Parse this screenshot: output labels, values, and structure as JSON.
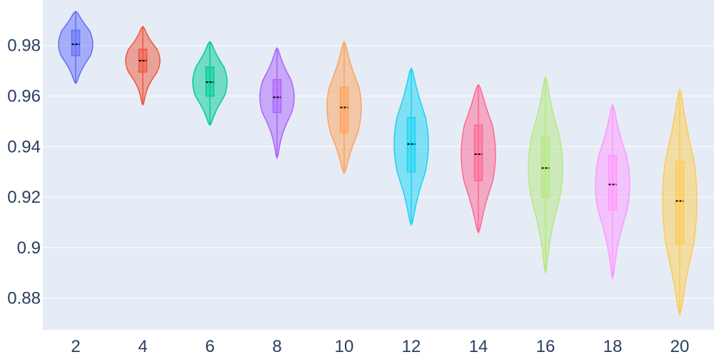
{
  "chart_data": {
    "type": "violin",
    "title": "",
    "xlabel": "",
    "ylabel": "",
    "ylim": [
      0.8675,
      0.998
    ],
    "yticks": [
      0.88,
      0.9,
      0.92,
      0.94,
      0.96,
      0.98
    ],
    "ytick_labels": [
      "0.88",
      "0.9",
      "0.92",
      "0.94",
      "0.96",
      "0.98"
    ],
    "categories": [
      "2",
      "4",
      "6",
      "8",
      "10",
      "12",
      "14",
      "16",
      "18",
      "20"
    ],
    "grid": true,
    "legend": "none",
    "background": "#e5ecf6",
    "series": [
      {
        "color": "#636efa",
        "min": 0.965,
        "q1": 0.976,
        "median": 0.9805,
        "q3": 0.986,
        "max": 0.9935,
        "mean": 0.9805
      },
      {
        "color": "#ef553b",
        "min": 0.9565,
        "q1": 0.9695,
        "median": 0.974,
        "q3": 0.9785,
        "max": 0.9875,
        "mean": 0.974
      },
      {
        "color": "#00cc96",
        "min": 0.9485,
        "q1": 0.96,
        "median": 0.9655,
        "q3": 0.9715,
        "max": 0.9815,
        "mean": 0.9655
      },
      {
        "color": "#ab63fa",
        "min": 0.9355,
        "q1": 0.9535,
        "median": 0.9595,
        "q3": 0.9665,
        "max": 0.979,
        "mean": 0.9595
      },
      {
        "color": "#ffa15a",
        "min": 0.9295,
        "q1": 0.9455,
        "median": 0.9555,
        "q3": 0.9635,
        "max": 0.9815,
        "mean": 0.9555
      },
      {
        "color": "#19d3f3",
        "min": 0.909,
        "q1": 0.93,
        "median": 0.941,
        "q3": 0.9515,
        "max": 0.971,
        "mean": 0.941
      },
      {
        "color": "#ff6692",
        "min": 0.906,
        "q1": 0.9265,
        "median": 0.937,
        "q3": 0.9485,
        "max": 0.9645,
        "mean": 0.937
      },
      {
        "color": "#b6e880",
        "min": 0.89,
        "q1": 0.92,
        "median": 0.9315,
        "q3": 0.944,
        "max": 0.9675,
        "mean": 0.9315
      },
      {
        "color": "#ff97ff",
        "min": 0.888,
        "q1": 0.915,
        "median": 0.925,
        "q3": 0.9365,
        "max": 0.9565,
        "mean": 0.925
      },
      {
        "color": "#fecb52",
        "min": 0.8735,
        "q1": 0.9015,
        "median": 0.9185,
        "q3": 0.934,
        "max": 0.9625,
        "mean": 0.9185
      }
    ]
  }
}
